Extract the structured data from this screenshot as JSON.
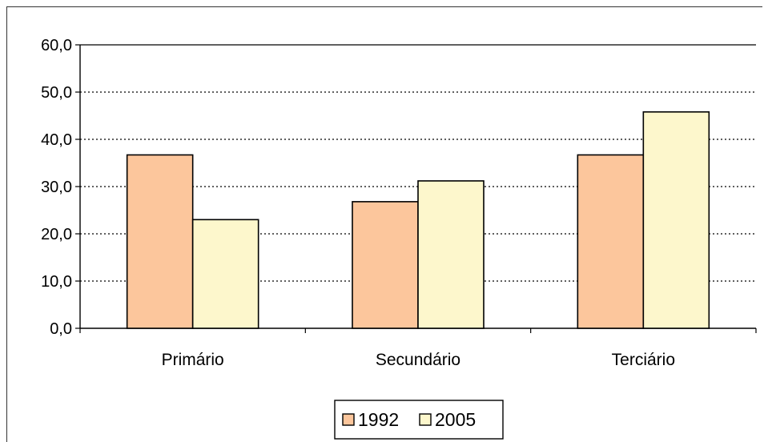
{
  "chart_data": {
    "type": "bar",
    "categories": [
      "Primário",
      "Secundário",
      "Terciário"
    ],
    "series": [
      {
        "name": "1992",
        "values": [
          36.7,
          26.8,
          36.7
        ],
        "color": "#fcc69c"
      },
      {
        "name": "2005",
        "values": [
          23.0,
          31.2,
          45.8
        ],
        "color": "#fdf7cc"
      }
    ],
    "ylim": [
      0,
      60
    ],
    "yticks": [
      "0,0",
      "10,0",
      "20,0",
      "30,0",
      "40,0",
      "50,0",
      "60,0"
    ],
    "grid": "dotted horizontal",
    "legend": "bottom",
    "bar_outline": "#000000"
  }
}
